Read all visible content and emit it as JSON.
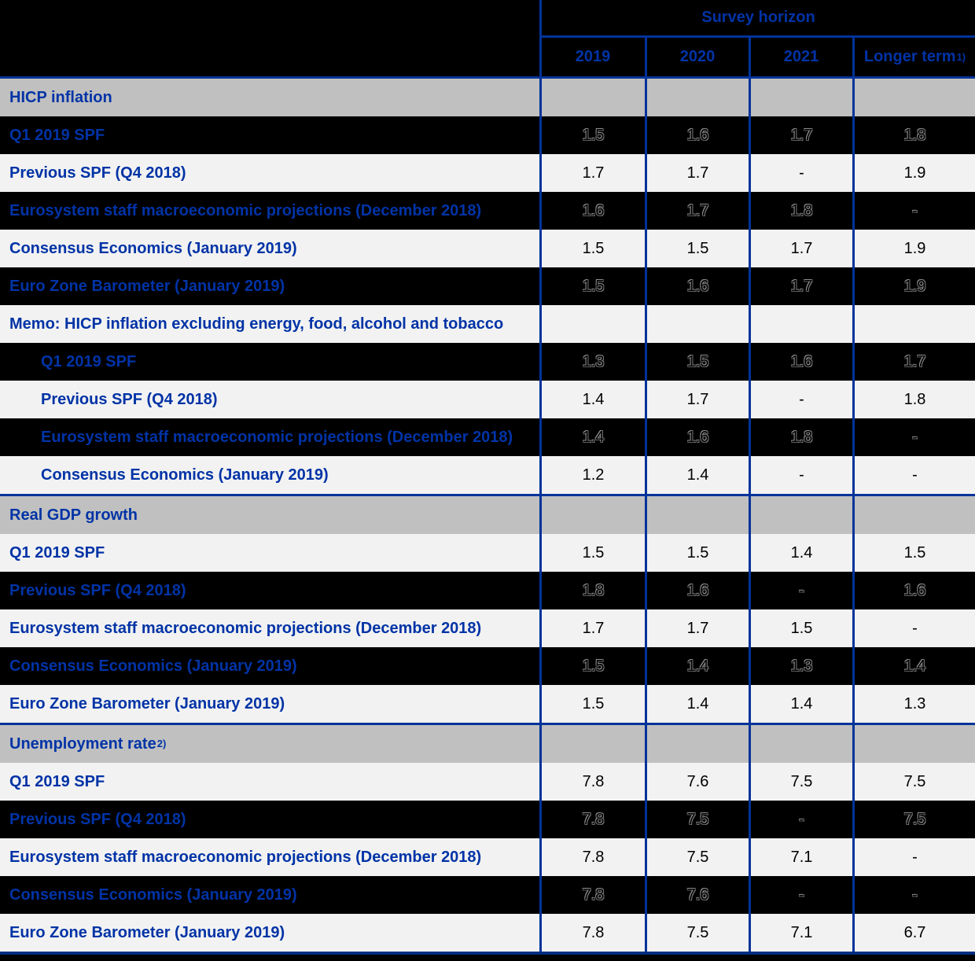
{
  "table": {
    "header": {
      "group_label": "Survey horizon",
      "columns": [
        {
          "label": "2019",
          "sup": ""
        },
        {
          "label": "2020",
          "sup": ""
        },
        {
          "label": "2021",
          "sup": ""
        },
        {
          "label": "Longer term",
          "sup": "1)"
        }
      ]
    },
    "rows": [
      {
        "type": "section",
        "label": "HICP inflation",
        "sup": "",
        "values": [
          "",
          "",
          "",
          ""
        ]
      },
      {
        "type": "data",
        "shade": "dark",
        "indent": false,
        "label": "Q1 2019 SPF",
        "sup": "",
        "values": [
          "1.5",
          "1.6",
          "1.7",
          "1.8"
        ]
      },
      {
        "type": "data",
        "shade": "light",
        "indent": false,
        "label": "Previous SPF (Q4 2018)",
        "sup": "",
        "values": [
          "1.7",
          "1.7",
          "-",
          "1.9"
        ]
      },
      {
        "type": "data",
        "shade": "dark",
        "indent": false,
        "label": "Eurosystem staff macroeconomic projections (December 2018)",
        "sup": "",
        "values": [
          "1.6",
          "1.7",
          "1.8",
          "-"
        ]
      },
      {
        "type": "data",
        "shade": "light",
        "indent": false,
        "label": "Consensus Economics (January 2019)",
        "sup": "",
        "values": [
          "1.5",
          "1.5",
          "1.7",
          "1.9"
        ]
      },
      {
        "type": "data",
        "shade": "dark",
        "indent": false,
        "label": "Euro Zone Barometer (January 2019)",
        "sup": "",
        "values": [
          "1.5",
          "1.6",
          "1.7",
          "1.9"
        ]
      },
      {
        "type": "data",
        "shade": "light",
        "indent": false,
        "label": "Memo: HICP inflation excluding energy, food, alcohol and tobacco",
        "sup": "",
        "values": [
          "",
          "",
          "",
          ""
        ]
      },
      {
        "type": "data",
        "shade": "dark",
        "indent": true,
        "label": "Q1 2019 SPF",
        "sup": "",
        "values": [
          "1.3",
          "1.5",
          "1.6",
          "1.7"
        ]
      },
      {
        "type": "data",
        "shade": "light",
        "indent": true,
        "label": "Previous SPF (Q4 2018)",
        "sup": "",
        "values": [
          "1.4",
          "1.7",
          "-",
          "1.8"
        ]
      },
      {
        "type": "data",
        "shade": "dark",
        "indent": true,
        "label": "Eurosystem staff macroeconomic projections (December 2018)",
        "sup": "",
        "values": [
          "1.4",
          "1.6",
          "1.8",
          "-"
        ]
      },
      {
        "type": "data",
        "shade": "light",
        "indent": true,
        "label": "Consensus Economics (January 2019)",
        "sup": "",
        "values": [
          "1.2",
          "1.4",
          "-",
          "-"
        ]
      },
      {
        "type": "section",
        "label": "Real GDP growth",
        "sup": "",
        "values": [
          "",
          "",
          "",
          ""
        ]
      },
      {
        "type": "data",
        "shade": "light",
        "indent": false,
        "label": "Q1 2019 SPF",
        "sup": "",
        "values": [
          "1.5",
          "1.5",
          "1.4",
          "1.5"
        ]
      },
      {
        "type": "data",
        "shade": "dark",
        "indent": false,
        "label": "Previous SPF (Q4 2018)",
        "sup": "",
        "values": [
          "1.8",
          "1.6",
          "-",
          "1.6"
        ]
      },
      {
        "type": "data",
        "shade": "light",
        "indent": false,
        "label": "Eurosystem staff macroeconomic projections (December 2018)",
        "sup": "",
        "values": [
          "1.7",
          "1.7",
          "1.5",
          "-"
        ]
      },
      {
        "type": "data",
        "shade": "dark",
        "indent": false,
        "label": "Consensus Economics (January 2019)",
        "sup": "",
        "values": [
          "1.5",
          "1.4",
          "1.3",
          "1.4"
        ]
      },
      {
        "type": "data",
        "shade": "light",
        "indent": false,
        "label": "Euro Zone Barometer (January 2019)",
        "sup": "",
        "values": [
          "1.5",
          "1.4",
          "1.4",
          "1.3"
        ]
      },
      {
        "type": "section",
        "label": "Unemployment rate",
        "sup": "2)",
        "values": [
          "",
          "",
          "",
          ""
        ]
      },
      {
        "type": "data",
        "shade": "light",
        "indent": false,
        "label": "Q1 2019 SPF",
        "sup": "",
        "values": [
          "7.8",
          "7.6",
          "7.5",
          "7.5"
        ]
      },
      {
        "type": "data",
        "shade": "dark",
        "indent": false,
        "label": "Previous SPF (Q4 2018)",
        "sup": "",
        "values": [
          "7.8",
          "7.5",
          "-",
          "7.5"
        ]
      },
      {
        "type": "data",
        "shade": "light",
        "indent": false,
        "label": "Eurosystem staff macroeconomic projections (December 2018)",
        "sup": "",
        "values": [
          "7.8",
          "7.5",
          "7.1",
          "-"
        ]
      },
      {
        "type": "data",
        "shade": "dark",
        "indent": false,
        "label": "Consensus Economics (January 2019)",
        "sup": "",
        "values": [
          "7.8",
          "7.6",
          "-",
          "-"
        ]
      },
      {
        "type": "data",
        "shade": "light",
        "indent": false,
        "label": "Euro Zone Barometer (January 2019)",
        "sup": "",
        "values": [
          "7.8",
          "7.5",
          "7.1",
          "6.7"
        ]
      }
    ],
    "colors": {
      "accent_blue": "#0033A6",
      "border_blue": "#003399",
      "bottom_border_blue": "#002d80",
      "section_header_bg": "#C0C0C0",
      "light_row_bg": "#F2F2F2",
      "dark_row_bg": "#000000"
    }
  }
}
